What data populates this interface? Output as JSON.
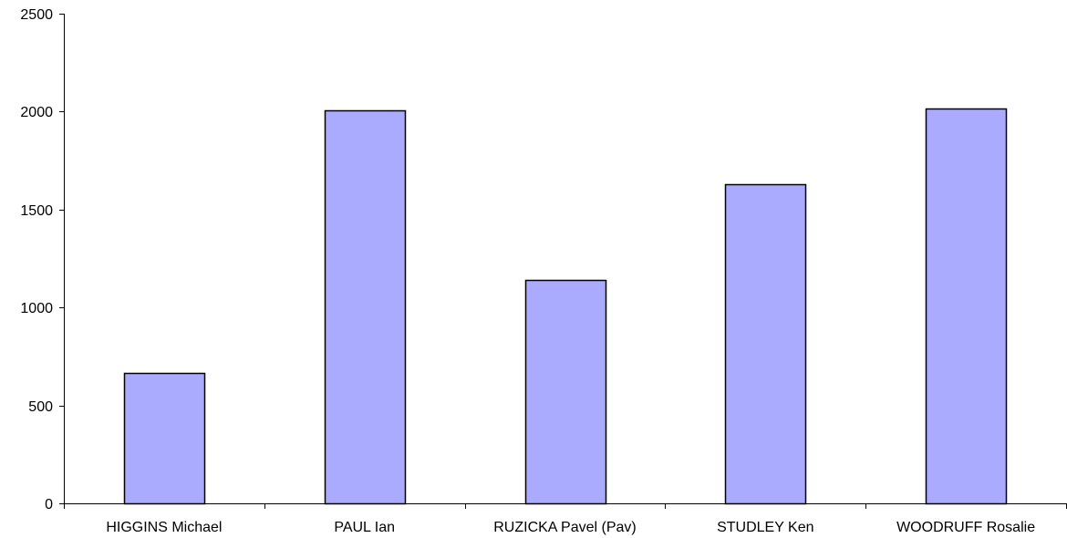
{
  "chart_data": {
    "type": "bar",
    "categories": [
      "HIGGINS Michael",
      "PAUL Ian",
      "RUZICKA Pavel (Pav)",
      "STUDLEY Ken",
      "WOODRUFF Rosalie"
    ],
    "values": [
      665,
      2005,
      1140,
      1630,
      2015
    ],
    "yticks": [
      0,
      500,
      1000,
      1500,
      2000,
      2500
    ],
    "ylim": [
      0,
      2500
    ],
    "title": "",
    "xlabel": "",
    "ylabel": "",
    "grid": false,
    "legend": false
  },
  "colors": {
    "bar_fill": "#aaaaff",
    "bar_stroke": "#000000",
    "axis": "#000000"
  }
}
